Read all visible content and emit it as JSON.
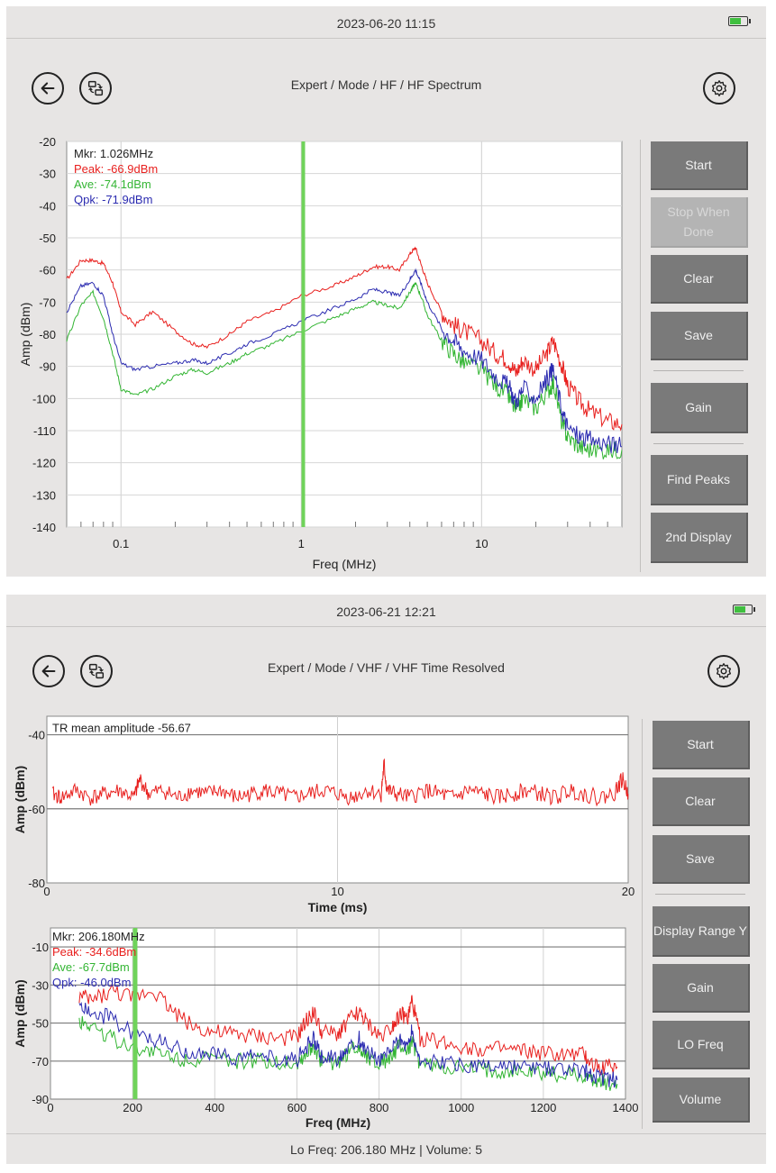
{
  "screen1": {
    "datetime": "2023-06-20 11:15",
    "breadcrumb": "Expert / Mode / HF / HF Spectrum",
    "buttons": [
      "Start",
      "Stop When Done",
      "Clear",
      "Save",
      "Gain",
      "Find Peaks",
      "2nd Display"
    ],
    "disabled_buttons": [
      "Stop When Done"
    ],
    "markers": {
      "mkr": "Mkr: 1.026MHz",
      "peak": "Peak: -66.9dBm",
      "ave": "Ave: -74.1dBm",
      "qpk": "Qpk: -71.9dBm"
    }
  },
  "screen2": {
    "datetime": "2023-06-21 12:21",
    "breadcrumb": "Expert / Mode / VHF / VHF Time Resolved",
    "buttons": [
      "Start",
      "Clear",
      "Save",
      "Display Range Y",
      "Gain",
      "LO Freq",
      "Volume"
    ],
    "time_annotation": "TR mean amplitude -56.67",
    "markers": {
      "mkr": "Mkr: 206.180MHz",
      "peak": "Peak: -34.6dBm",
      "ave": "Ave: -67.7dBm",
      "qpk": "Qpk: -46.0dBm"
    },
    "status_bar": "Lo Freq: 206.180 MHz  |  Volume: 5"
  },
  "colors": {
    "peak": "#e8201e",
    "ave": "#33b533",
    "qpk": "#2b2bb0",
    "marker_line": "#6fd35a",
    "button": "#7a7a7a",
    "background": "#e7e5e4"
  },
  "icons": [
    "back-arrow-icon",
    "switch-mode-icon",
    "gear-icon",
    "battery-icon"
  ],
  "chart_data": [
    {
      "type": "line",
      "title": "",
      "xlabel": "Freq (MHz)",
      "ylabel": "Amp (dBm)",
      "x_scale": "log",
      "xlim": [
        0.05,
        60
      ],
      "ylim": [
        -140,
        -20
      ],
      "x_tick_labels": [
        "0.1",
        "1",
        "10"
      ],
      "y_ticks": [
        -20,
        -30,
        -40,
        -50,
        -60,
        -70,
        -80,
        -90,
        -100,
        -110,
        -120,
        -130,
        -140
      ],
      "marker_x": 1.026,
      "x": [
        0.05,
        0.06,
        0.07,
        0.08,
        0.09,
        0.1,
        0.12,
        0.15,
        0.2,
        0.25,
        0.3,
        0.4,
        0.5,
        0.7,
        1.0,
        1.5,
        2.0,
        2.5,
        3.0,
        3.5,
        4.0,
        4.3,
        4.6,
        5.0,
        6.0,
        7.0,
        8.0,
        10.0,
        12.0,
        14.0,
        15.5,
        17.0,
        20.0,
        23.0,
        25.0,
        28.0,
        30.0,
        35.0,
        40.0,
        50.0,
        60.0
      ],
      "series": [
        {
          "name": "Peak",
          "values": [
            -63,
            -57,
            -57,
            -58,
            -64,
            -73,
            -77,
            -73,
            -79,
            -83,
            -84,
            -80,
            -76,
            -73,
            -68,
            -65,
            -62,
            -59,
            -59,
            -60,
            -55,
            -53,
            -58,
            -64,
            -73,
            -77,
            -79,
            -82,
            -86,
            -88,
            -92,
            -88,
            -91,
            -86,
            -82,
            -90,
            -96,
            -101,
            -104,
            -107,
            -108
          ]
        },
        {
          "name": "Ave",
          "values": [
            -82,
            -71,
            -67,
            -75,
            -86,
            -97,
            -99,
            -97,
            -93,
            -91,
            -92,
            -89,
            -86,
            -83,
            -79,
            -75,
            -72,
            -70,
            -71,
            -72,
            -67,
            -64,
            -68,
            -74,
            -82,
            -86,
            -89,
            -91,
            -96,
            -99,
            -104,
            -100,
            -103,
            -98,
            -95,
            -108,
            -112,
            -115,
            -116,
            -116,
            -116
          ]
        },
        {
          "name": "Qpk",
          "values": [
            -73,
            -65,
            -64,
            -68,
            -80,
            -89,
            -91,
            -90,
            -89,
            -88,
            -89,
            -86,
            -83,
            -80,
            -76,
            -72,
            -69,
            -66,
            -67,
            -68,
            -63,
            -60,
            -64,
            -70,
            -78,
            -82,
            -85,
            -88,
            -93,
            -96,
            -101,
            -97,
            -100,
            -94,
            -91,
            -104,
            -109,
            -112,
            -113,
            -114,
            -115
          ]
        }
      ]
    },
    {
      "type": "line",
      "title": "",
      "xlabel": "Time (ms)",
      "ylabel": "Amp (dBm)",
      "xlim": [
        0,
        20
      ],
      "ylim": [
        -80,
        -35
      ],
      "x_tick_labels": [
        "0",
        "10",
        "20"
      ],
      "y_tick_labels": [
        "-40",
        "-60",
        "-80"
      ],
      "x": [
        0.2,
        0.5,
        1,
        1.5,
        2,
        2.5,
        3,
        3.2,
        3.5,
        4,
        4.5,
        5,
        5.5,
        6,
        6.5,
        7,
        7.5,
        8,
        8.5,
        9,
        9.5,
        10,
        10.5,
        11,
        11.5,
        11.6,
        11.7,
        12,
        12.5,
        13,
        13.5,
        14,
        14.5,
        15,
        15.5,
        16,
        16.5,
        17,
        17.5,
        18,
        18.5,
        19,
        19.5,
        19.8,
        20
      ],
      "series": [
        {
          "name": "Peak",
          "values": [
            -56,
            -57,
            -55,
            -57,
            -56,
            -55,
            -57,
            -52,
            -56,
            -55,
            -57,
            -55,
            -56,
            -55,
            -57,
            -56,
            -55,
            -56,
            -57,
            -56,
            -55,
            -56,
            -57,
            -55,
            -56,
            -48,
            -55,
            -56,
            -57,
            -55,
            -56,
            -57,
            -55,
            -56,
            -57,
            -56,
            -55,
            -56,
            -57,
            -55,
            -56,
            -57,
            -56,
            -52,
            -56
          ]
        }
      ]
    },
    {
      "type": "line",
      "title": "",
      "xlabel": "Freq (MHz)",
      "ylabel": "Amp (dBm)",
      "xlim": [
        0,
        1400
      ],
      "ylim": [
        -90,
        0
      ],
      "x_tick_labels": [
        "0",
        "200",
        "400",
        "600",
        "800",
        "1000",
        "1200",
        "1400"
      ],
      "y_tick_labels": [
        "-10",
        "-30",
        "-50",
        "-70",
        "-90"
      ],
      "marker_x": 206.18,
      "x": [
        70,
        100,
        150,
        200,
        250,
        300,
        350,
        400,
        450,
        500,
        550,
        600,
        620,
        640,
        660,
        700,
        720,
        750,
        770,
        800,
        830,
        850,
        870,
        880,
        900,
        950,
        1000,
        1050,
        1100,
        1150,
        1200,
        1250,
        1300,
        1320,
        1350,
        1380
      ],
      "series": [
        {
          "name": "Peak",
          "values": [
            -36,
            -38,
            -33,
            -37,
            -32,
            -44,
            -52,
            -55,
            -56,
            -57,
            -58,
            -58,
            -50,
            -44,
            -55,
            -56,
            -50,
            -44,
            -50,
            -57,
            -52,
            -45,
            -48,
            -38,
            -58,
            -60,
            -62,
            -64,
            -64,
            -65,
            -66,
            -67,
            -67,
            -72,
            -73,
            -73
          ]
        },
        {
          "name": "Ave",
          "values": [
            -49,
            -51,
            -58,
            -62,
            -65,
            -68,
            -69,
            -69,
            -70,
            -70,
            -70,
            -71,
            -67,
            -62,
            -70,
            -71,
            -66,
            -62,
            -67,
            -71,
            -68,
            -62,
            -65,
            -60,
            -72,
            -73,
            -74,
            -75,
            -75,
            -76,
            -76,
            -77,
            -77,
            -80,
            -81,
            -82
          ]
        },
        {
          "name": "Qpk",
          "values": [
            -40,
            -44,
            -48,
            -55,
            -58,
            -63,
            -66,
            -67,
            -68,
            -68,
            -69,
            -69,
            -64,
            -58,
            -68,
            -69,
            -63,
            -58,
            -64,
            -69,
            -65,
            -58,
            -62,
            -54,
            -70,
            -71,
            -72,
            -73,
            -73,
            -74,
            -74,
            -75,
            -75,
            -78,
            -79,
            -80
          ]
        }
      ]
    }
  ]
}
